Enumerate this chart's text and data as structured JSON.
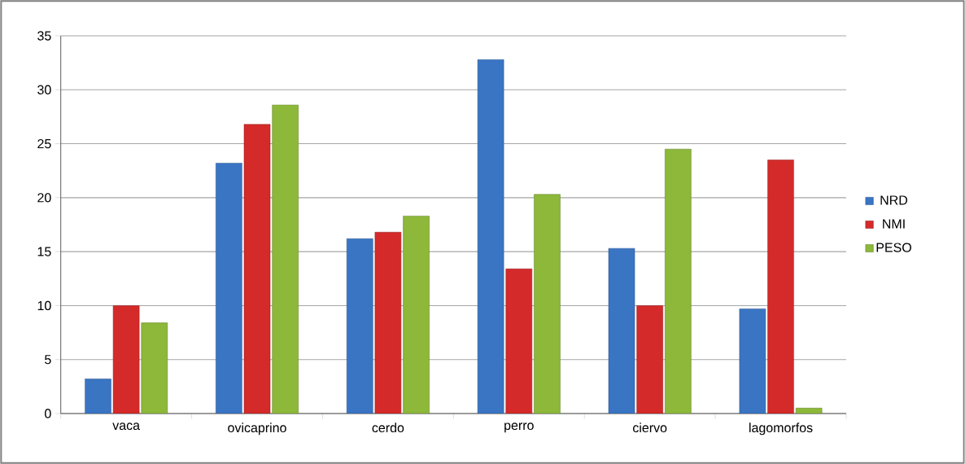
{
  "chart_data": {
    "type": "bar",
    "categories": [
      "vaca",
      "ovicaprino",
      "cerdo",
      "perro",
      "ciervo",
      "lagomorfos"
    ],
    "series": [
      {
        "name": "NRD",
        "color": "#3a75c4",
        "values": [
          3.2,
          23.2,
          16.2,
          32.8,
          15.3,
          9.7
        ]
      },
      {
        "name": "NMI",
        "color": "#d42a2a",
        "values": [
          10.0,
          26.8,
          16.8,
          13.4,
          10.0,
          23.5
        ]
      },
      {
        "name": "PESO",
        "color": "#8db83a",
        "values": [
          8.4,
          28.6,
          18.3,
          20.3,
          24.5,
          0.5
        ]
      }
    ],
    "ylim": [
      0,
      35
    ],
    "yticks": [
      0,
      5,
      10,
      15,
      20,
      25,
      30,
      35
    ],
    "grid": "y",
    "legend": "right"
  }
}
